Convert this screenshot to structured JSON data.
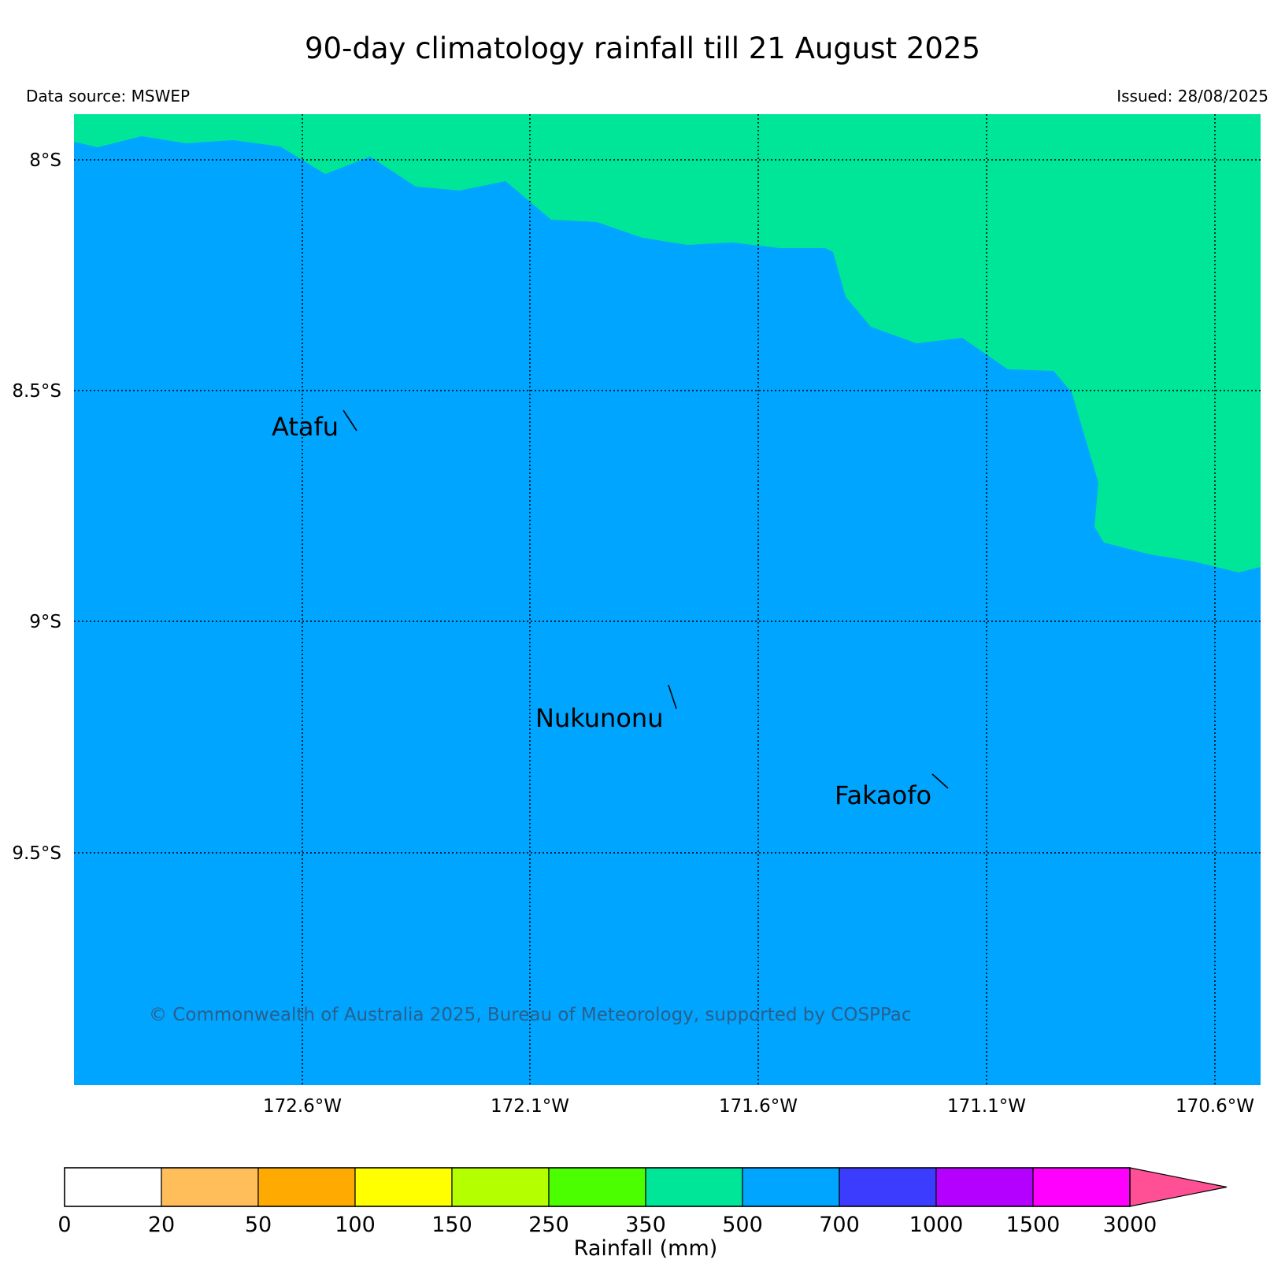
{
  "title": "90-day climatology rainfall till 21 August 2025",
  "data_source": "Data source: MSWEP",
  "issued": "Issued: 28/08/2025",
  "copyright": "© Commonwealth of Australia 2025, Bureau of Meteorology, supported by COSPPac",
  "map": {
    "lat_labels": [
      "8°S",
      "8.5°S",
      "9°S",
      "9.5°S"
    ],
    "lon_labels": [
      "172.6°W",
      "172.1°W",
      "171.6°W",
      "171.1°W",
      "170.6°W"
    ],
    "places": [
      "Atafu",
      "Nukunonu",
      "Fakaofo"
    ],
    "regions": [
      {
        "class": "350-500",
        "color": "#00e699"
      },
      {
        "class": "500-700",
        "color": "#00a5ff"
      }
    ]
  },
  "colorbar": {
    "label": "Rainfall (mm)",
    "ticks": [
      "0",
      "20",
      "50",
      "100",
      "150",
      "250",
      "350",
      "500",
      "700",
      "1000",
      "1500",
      "3000"
    ],
    "colors": [
      "#ffffff",
      "#ffbe5a",
      "#ffaa00",
      "#ffff00",
      "#b4ff00",
      "#4bff00",
      "#00e699",
      "#00a5ff",
      "#3c3cff",
      "#b400ff",
      "#ff00ff",
      "#ff5096"
    ]
  }
}
